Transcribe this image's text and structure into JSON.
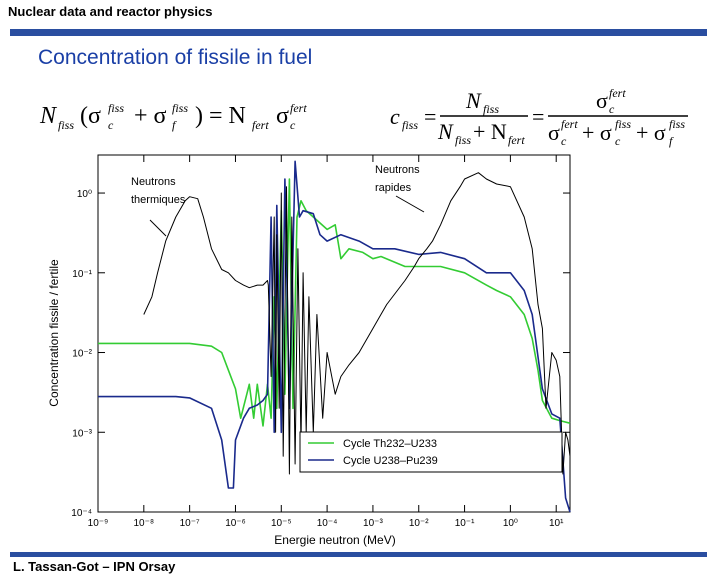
{
  "header": {
    "text": "Nuclear data and reactor physics"
  },
  "title": "Concentration of fissile in fuel",
  "footer": {
    "text": "L. Tassan-Got – IPN Orsay"
  },
  "colors": {
    "header_bar": "#2a4ea0",
    "title": "#1a3fa6",
    "cycle_th": "#33cc33",
    "cycle_u": "#1a2a8c",
    "neutron_curve": "#000000"
  },
  "chart_data": {
    "type": "line",
    "xlabel": "Energie neutron (MeV)",
    "ylabel": "Concentration fissile / fertile",
    "xscale": "log",
    "yscale": "log",
    "xlim": [
      1e-09,
      20
    ],
    "ylim": [
      0.0001,
      3
    ],
    "x_ticks": [
      "10⁻⁹",
      "10⁻⁸",
      "10⁻⁷",
      "10⁻⁶",
      "10⁻⁵",
      "10⁻⁴",
      "10⁻³",
      "10⁻²",
      "10⁻¹",
      "10⁰",
      "10¹"
    ],
    "y_ticks": [
      "10⁻⁴",
      "10⁻³",
      "10⁻²",
      "10⁻¹",
      "10⁰"
    ],
    "legend": {
      "position": "bottom-right",
      "entries": [
        "Cycle Th232–U233",
        "Cycle U238–Pu239"
      ]
    },
    "annotations": [
      {
        "text": "Neutrons thermiques"
      },
      {
        "text": "Neutrons rapides"
      }
    ],
    "series": [
      {
        "name": "Cycle Th232–U233",
        "color": "#33cc33",
        "points": [
          [
            1e-09,
            0.013
          ],
          [
            1e-07,
            0.013
          ],
          [
            3e-07,
            0.012
          ],
          [
            5e-07,
            0.01
          ],
          [
            7e-07,
            0.006
          ],
          [
            1e-06,
            0.0035
          ],
          [
            1.3e-06,
            0.0015
          ],
          [
            2e-06,
            0.004
          ],
          [
            2.5e-06,
            0.0015
          ],
          [
            3e-06,
            0.004
          ],
          [
            4e-06,
            0.0012
          ],
          [
            5e-06,
            0.004
          ],
          [
            6e-06,
            0.0015
          ],
          [
            7e-06,
            0.05
          ],
          [
            8e-06,
            0.002
          ],
          [
            1e-05,
            0.6
          ],
          [
            1.2e-05,
            0.003
          ],
          [
            1.5e-05,
            1.5
          ],
          [
            1.8e-05,
            0.002
          ],
          [
            2.2e-05,
            0.5
          ],
          [
            2.7e-05,
            0.8
          ],
          [
            3.5e-05,
            0.6
          ],
          [
            5e-05,
            0.5
          ],
          [
            0.0001,
            0.35
          ],
          [
            0.00015,
            0.4
          ],
          [
            0.0002,
            0.15
          ],
          [
            0.0003,
            0.2
          ],
          [
            0.0006,
            0.18
          ],
          [
            0.001,
            0.15
          ],
          [
            0.0015,
            0.16
          ],
          [
            0.005,
            0.12
          ],
          [
            0.01,
            0.12
          ],
          [
            0.03,
            0.12
          ],
          [
            0.1,
            0.1
          ],
          [
            0.3,
            0.07
          ],
          [
            0.5,
            0.06
          ],
          [
            1,
            0.05
          ],
          [
            2,
            0.03
          ],
          [
            3,
            0.015
          ],
          [
            4,
            0.006
          ],
          [
            5,
            0.0025
          ],
          [
            8,
            0.0015
          ],
          [
            12,
            0.0014
          ],
          [
            20,
            0.0013
          ]
        ]
      },
      {
        "name": "Cycle U238–Pu239",
        "color": "#1a2a8c",
        "points": [
          [
            1e-09,
            0.0028
          ],
          [
            1e-08,
            0.0028
          ],
          [
            5e-08,
            0.0028
          ],
          [
            1e-07,
            0.0027
          ],
          [
            3e-07,
            0.002
          ],
          [
            5e-07,
            0.0008
          ],
          [
            7e-07,
            0.0002
          ],
          [
            9e-07,
            0.0002
          ],
          [
            1e-06,
            0.0008
          ],
          [
            1.5e-06,
            0.0015
          ],
          [
            2e-06,
            0.002
          ],
          [
            3e-06,
            0.0022
          ],
          [
            4e-06,
            0.0025
          ],
          [
            5e-06,
            0.003
          ],
          [
            6e-06,
            0.5
          ],
          [
            7e-06,
            0.001
          ],
          [
            8e-06,
            0.7
          ],
          [
            1e-05,
            0.001
          ],
          [
            1.2e-05,
            1.5
          ],
          [
            1.5e-05,
            0.002
          ],
          [
            2e-05,
            2.5
          ],
          [
            2.5e-05,
            0.5
          ],
          [
            3e-05,
            0.6
          ],
          [
            5e-05,
            0.55
          ],
          [
            7e-05,
            0.3
          ],
          [
            0.0001,
            0.25
          ],
          [
            0.0002,
            0.3
          ],
          [
            0.0005,
            0.25
          ],
          [
            0.001,
            0.2
          ],
          [
            0.003,
            0.2
          ],
          [
            0.01,
            0.17
          ],
          [
            0.03,
            0.18
          ],
          [
            0.1,
            0.15
          ],
          [
            0.3,
            0.1
          ],
          [
            1,
            0.1
          ],
          [
            2,
            0.06
          ],
          [
            3,
            0.03
          ],
          [
            5,
            0.0035
          ],
          [
            8,
            0.0017
          ],
          [
            12,
            0.0015
          ],
          [
            16,
            0.00015
          ],
          [
            20,
            0.0001
          ]
        ]
      },
      {
        "name": "",
        "color": "#000000",
        "points": [
          [
            1e-08,
            0.03
          ],
          [
            1.5e-08,
            0.05
          ],
          [
            2e-08,
            0.1
          ],
          [
            3e-08,
            0.25
          ],
          [
            5e-08,
            0.5
          ],
          [
            8e-08,
            0.8
          ],
          [
            1e-07,
            0.9
          ],
          [
            1.5e-07,
            0.85
          ],
          [
            2e-07,
            0.5
          ],
          [
            3e-07,
            0.2
          ],
          [
            5e-07,
            0.11
          ],
          [
            7e-07,
            0.1
          ],
          [
            1e-06,
            0.08
          ],
          [
            1.5e-06,
            0.07
          ],
          [
            2e-06,
            0.065
          ],
          [
            3e-06,
            0.07
          ],
          [
            4e-06,
            0.07
          ],
          [
            5e-06,
            0.08
          ],
          [
            5.2e-06,
            0.07
          ],
          [
            6e-06,
            0.005
          ],
          [
            7e-06,
            0.5
          ],
          [
            7.5e-06,
            0.001
          ],
          [
            8e-06,
            0.3
          ],
          [
            9e-06,
            0.002
          ],
          [
            1e-05,
            1.0
          ],
          [
            1.1e-05,
            0.0005
          ],
          [
            1.3e-05,
            1.2
          ],
          [
            1.5e-05,
            0.0003
          ],
          [
            1.7e-05,
            0.5
          ],
          [
            2e-05,
            0.0004
          ],
          [
            2.3e-05,
            0.2
          ],
          [
            2.7e-05,
            0.0007
          ],
          [
            3e-05,
            0.1
          ],
          [
            3.5e-05,
            0.001
          ],
          [
            4e-05,
            0.05
          ],
          [
            5e-05,
            0.001
          ],
          [
            6e-05,
            0.03
          ],
          [
            8e-05,
            0.0015
          ],
          [
            0.0001,
            0.01
          ],
          [
            0.00015,
            0.003
          ],
          [
            0.0002,
            0.005
          ],
          [
            0.0003,
            0.007
          ],
          [
            0.0005,
            0.01
          ],
          [
            0.001,
            0.02
          ],
          [
            0.002,
            0.04
          ],
          [
            0.005,
            0.08
          ],
          [
            0.008,
            0.12
          ],
          [
            0.01,
            0.15
          ],
          [
            0.015,
            0.2
          ],
          [
            0.02,
            0.25
          ],
          [
            0.03,
            0.4
          ],
          [
            0.05,
            0.8
          ],
          [
            0.08,
            1.2
          ],
          [
            0.1,
            1.5
          ],
          [
            0.2,
            1.8
          ],
          [
            0.3,
            1.5
          ],
          [
            0.5,
            1.3
          ],
          [
            1,
            1.2
          ],
          [
            2,
            0.5
          ],
          [
            3,
            0.2
          ],
          [
            4,
            0.04
          ],
          [
            5,
            0.02
          ],
          [
            6,
            0.002
          ],
          [
            8,
            0.01
          ],
          [
            10,
            0.008
          ],
          [
            12,
            0.005
          ],
          [
            14,
            0.0003
          ],
          [
            16,
            0.001
          ],
          [
            18,
            0.0008
          ],
          [
            20,
            0.0005
          ]
        ]
      }
    ]
  }
}
